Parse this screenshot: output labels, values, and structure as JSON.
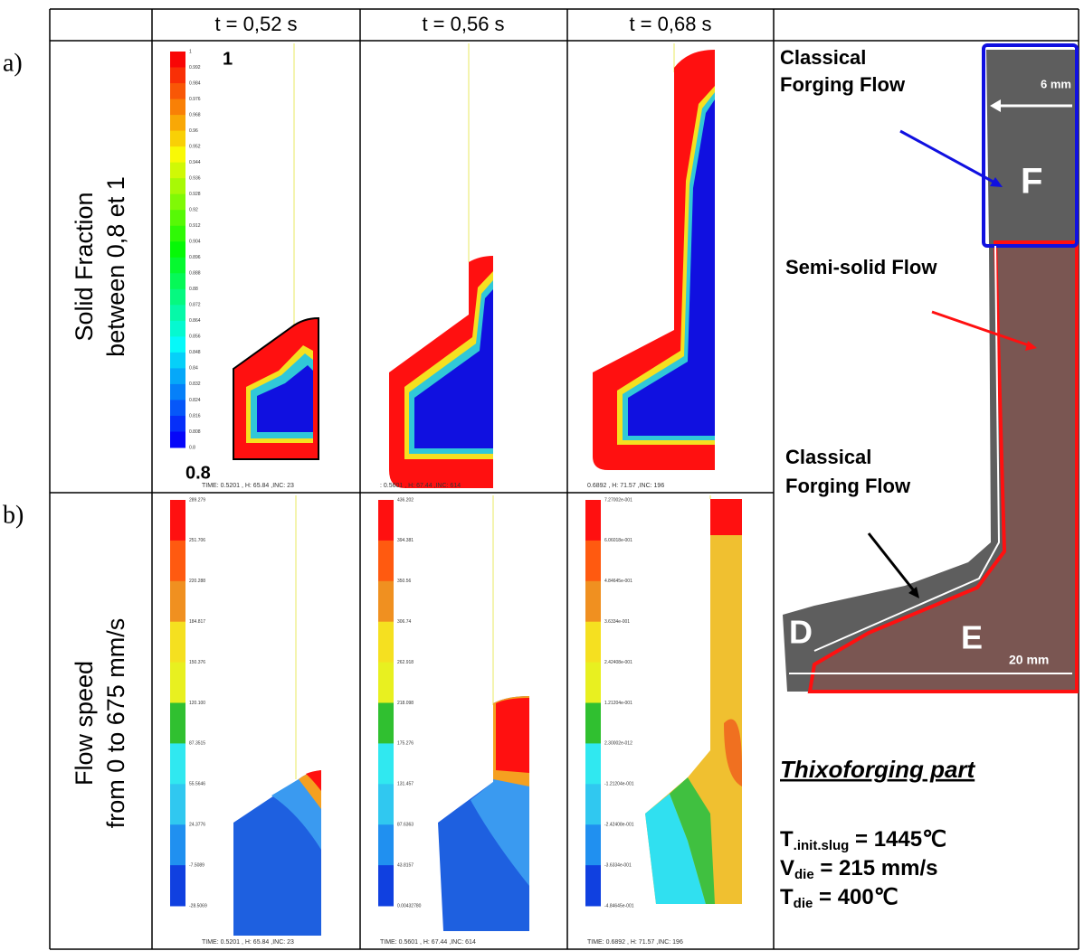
{
  "header": {
    "columns": [
      "t = 0,52 s",
      "t = 0,56 s",
      "t = 0,68 s"
    ]
  },
  "rows": [
    {
      "marker": "a)",
      "label": [
        "Solid Fraction",
        "between 0,8 et 1"
      ],
      "scale_max": "1",
      "scale_min": "0.8",
      "panels": [
        {
          "colorbar": [
            "1",
            "0.992",
            "0.984",
            "0.976",
            "0.968",
            "0.96",
            "0.952",
            "0.944",
            "0.936",
            "0.928",
            "0.92",
            "0.912",
            "0.904",
            "0.896",
            "0.888",
            "0.88",
            "0.872",
            "0.864",
            "0.856",
            "0.848",
            "0.84",
            "0.832",
            "0.824",
            "0.816",
            "0.808",
            "0.8"
          ],
          "status": "TIME: 0.5201   , H: 65.84   ,INC: 23"
        },
        {
          "status": ": 0.5601   , H: 67.44   ,INC: 614"
        },
        {
          "status": "0.6892   , H: 71.57   ,INC: 196"
        }
      ]
    },
    {
      "marker": "b)",
      "label": [
        "Flow speed",
        "from 0 to 675 mm/s"
      ],
      "panels": [
        {
          "colorbar": [
            "289.279",
            "251.706",
            "220.288",
            "184.817",
            "150.376",
            "120.100",
            "87.3515",
            "55.5646",
            "24.3776",
            "-7.5089",
            "-28.5069"
          ],
          "status": "TIME: 0.5201   , H: 65.84   ,INC: 23"
        },
        {
          "colorbar": [
            "436.202",
            "394.381",
            "350.56",
            "306.74",
            "262.918",
            "218.098",
            "175.276",
            "131.457",
            "87.6363",
            "43.8157",
            "0.00432780"
          ],
          "status": "TIME: 0.5601   , H: 67.44   ,INC: 614"
        },
        {
          "colorbar": [
            "7.27002e-001",
            "6.06018e-001",
            "4.84645e-001",
            "3.6334e-001",
            "2.42408e-001",
            "1.21204e-001",
            "2.30002e-012",
            "-1.21204e-001",
            "-2.42408e-001",
            "-3.6334e-001",
            "-4.84645e-001"
          ],
          "status": "TIME: 0.6892   , H: 71.57   ,INC: 196"
        }
      ]
    }
  ],
  "photo": {
    "top_label": [
      "Classical",
      "Forging Flow"
    ],
    "middle_label": "Semi-solid Flow",
    "bottom_label": [
      "Classical",
      "Forging Flow"
    ],
    "zones": [
      "F",
      "D",
      "E"
    ],
    "scale_top": "6 mm",
    "scale_bottom": "20 mm",
    "caption": "Thixoforging part",
    "params": [
      {
        "symbol": "T",
        "sub": ".init.slug",
        "value": " = 1445℃"
      },
      {
        "symbol": "V",
        "sub": "die",
        "value": " = 215 mm/s"
      },
      {
        "symbol": "T",
        "sub": "die",
        "value": " = 400℃"
      }
    ]
  }
}
